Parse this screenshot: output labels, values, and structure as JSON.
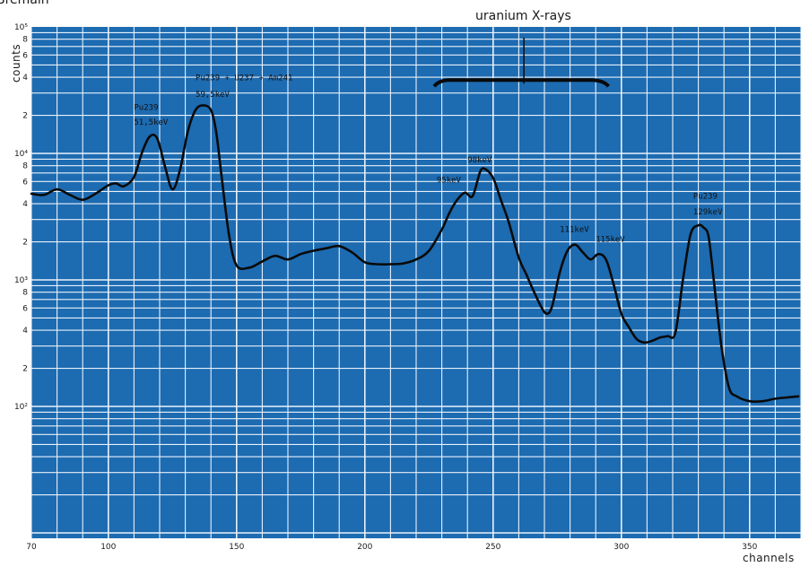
{
  "chart_data": {
    "type": "line",
    "title": "uranium X-rays",
    "corner_text": "Bremain",
    "xlabel": "channels",
    "ylabel": "counts",
    "xlim": [
      70,
      370
    ],
    "ylim": [
      10,
      100000
    ],
    "yscale": "log",
    "grid": true,
    "x_ticks": [
      70,
      100,
      150,
      200,
      250,
      300,
      350
    ],
    "y_decade_ticks": [
      {
        "value": 100000,
        "label": "10⁵"
      },
      {
        "value": 10000,
        "label": "10⁴"
      },
      {
        "value": 1000,
        "label": "10³"
      },
      {
        "value": 100,
        "label": "10²"
      }
    ],
    "y_minor_labels": [
      "8",
      "6",
      "4",
      "2"
    ],
    "series": [
      {
        "x": [
          70,
          75,
          80,
          85,
          90,
          95,
          100,
          103,
          106,
          110,
          113,
          116,
          119,
          122,
          125,
          128,
          131,
          134,
          137,
          140,
          142,
          144,
          147,
          150,
          155,
          160,
          165,
          170,
          175,
          180,
          185,
          190,
          195,
          200,
          205,
          210,
          215,
          220,
          225,
          230,
          233,
          236,
          239,
          242,
          245,
          247,
          250,
          253,
          256,
          260,
          263,
          266,
          269,
          271,
          273,
          276,
          279,
          282,
          285,
          288,
          291,
          294,
          297,
          300,
          303,
          306,
          309,
          312,
          315,
          318,
          321,
          324,
          327,
          330,
          332,
          334,
          336,
          339,
          342,
          345,
          350,
          355,
          360,
          365,
          369
        ],
        "y": [
          4800,
          4700,
          5200,
          4700,
          4300,
          4800,
          5600,
          5800,
          5500,
          6500,
          10000,
          13500,
          13200,
          8000,
          5200,
          7500,
          15000,
          22000,
          24000,
          22000,
          15000,
          7000,
          2300,
          1300,
          1250,
          1400,
          1550,
          1450,
          1600,
          1700,
          1780,
          1850,
          1650,
          1380,
          1330,
          1330,
          1350,
          1450,
          1700,
          2500,
          3400,
          4300,
          4900,
          4600,
          7200,
          7500,
          6400,
          4300,
          2900,
          1500,
          1100,
          800,
          600,
          540,
          620,
          1150,
          1700,
          1900,
          1650,
          1450,
          1600,
          1450,
          920,
          540,
          420,
          340,
          320,
          330,
          350,
          360,
          380,
          1000,
          2300,
          2700,
          2600,
          2200,
          1000,
          300,
          140,
          120,
          110,
          110,
          115,
          118,
          120
        ]
      }
    ],
    "annotations": [
      {
        "text": "Pu239",
        "x": 110,
        "y": 22000
      },
      {
        "text": "51,5keV",
        "x": 110,
        "y": 16800
      },
      {
        "text": "Pu239 + U237 + Am241",
        "x": 134,
        "y": 38000
      },
      {
        "text": "59,5keV",
        "x": 134,
        "y": 28000
      },
      {
        "text": "90keV",
        "x": 240,
        "y": 8500
      },
      {
        "text": "95keV",
        "x": 228,
        "y": 5900
      },
      {
        "text": "111keV",
        "x": 276,
        "y": 2400
      },
      {
        "text": "115keV",
        "x": 290,
        "y": 2000
      },
      {
        "text": "Pu239",
        "x": 328,
        "y": 4400
      },
      {
        "text": "129keV",
        "x": 328,
        "y": 3300
      }
    ],
    "colors": {
      "background": "#1d6bb1",
      "grid": "#e8f1fa",
      "line": "#0a0a0a"
    }
  }
}
